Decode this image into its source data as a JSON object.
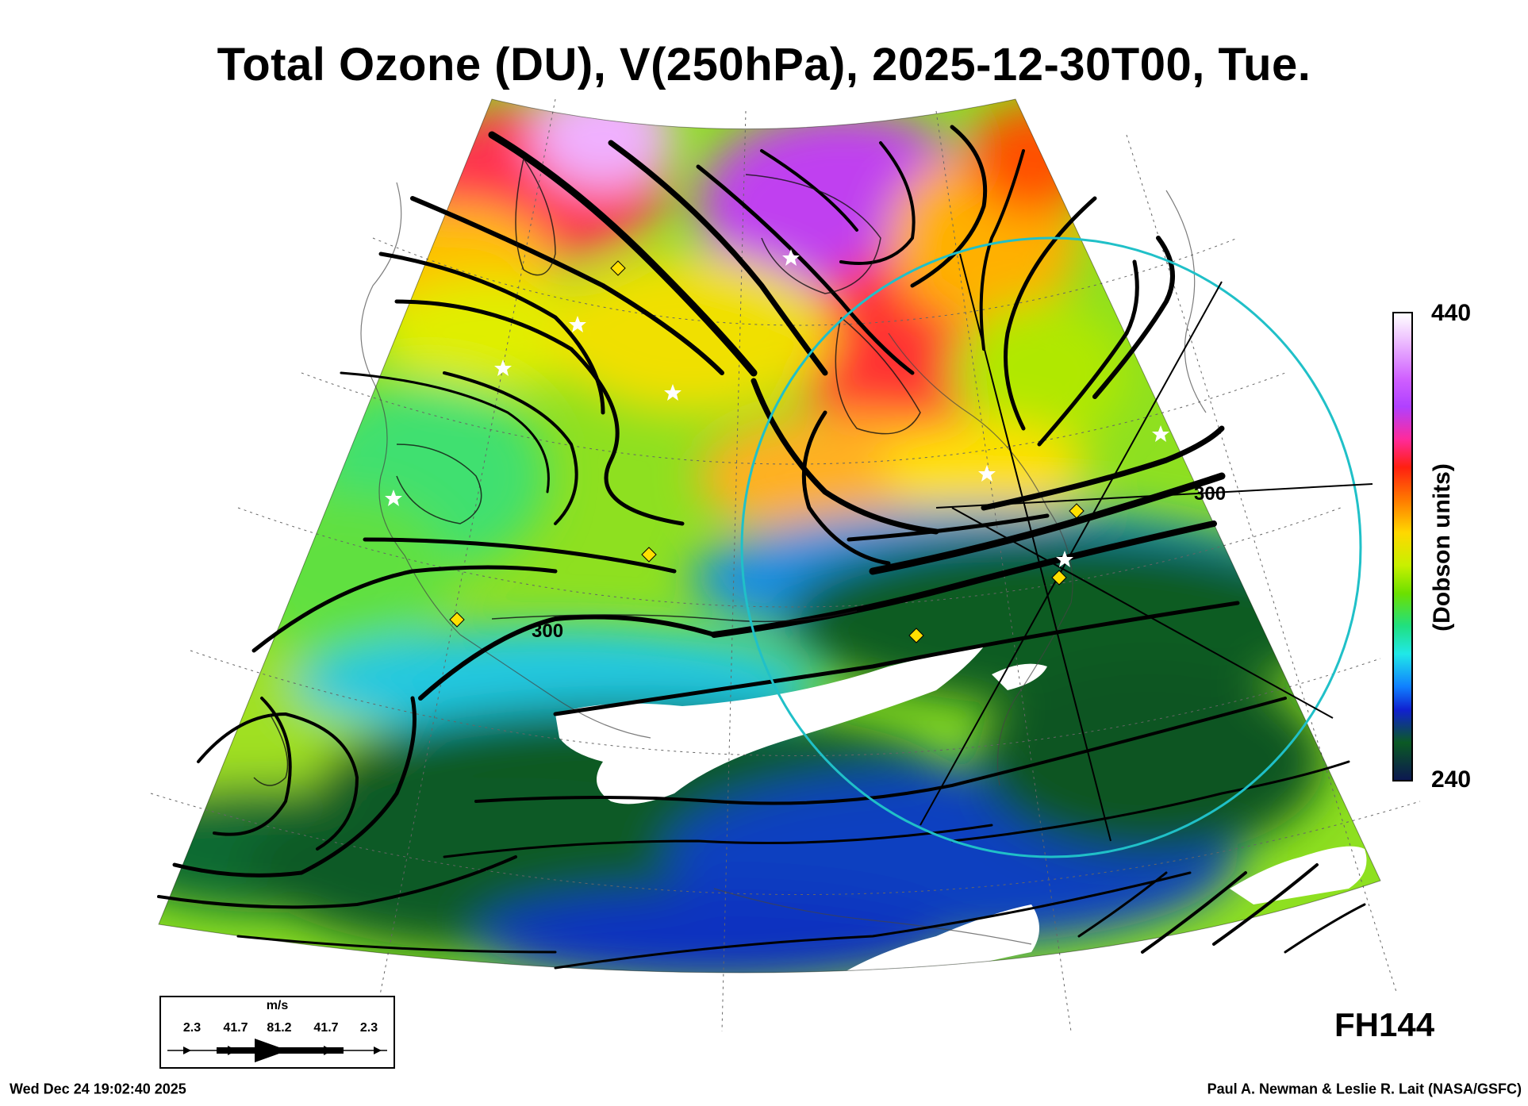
{
  "title": "Total Ozone (DU), V(250hPa), 2025-12-30T00, Tue.",
  "colorbar": {
    "max_label": "440",
    "min_label": "240",
    "title": "(Dobson units)"
  },
  "contour_labels": [
    "300",
    "300"
  ],
  "wind_legend": {
    "unit": "m/s",
    "values": [
      "2.3",
      "41.7",
      "81.2",
      "41.7",
      "2.3"
    ]
  },
  "forecast_hour": "FH144",
  "footer": {
    "timestamp": "Wed Dec 24 19:02:40 2025",
    "credit": "Paul A. Newman & Leslie R. Lait (NASA/GSFC)"
  },
  "colors": {
    "circle": "#20c0c8",
    "station_star": "#ffffff",
    "station_diamond": "#ffe000"
  }
}
